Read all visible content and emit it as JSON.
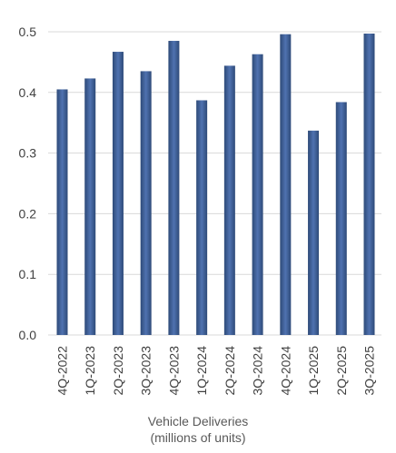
{
  "chart_data": {
    "type": "bar",
    "categories": [
      "4Q-2022",
      "1Q-2023",
      "2Q-2023",
      "3Q-2023",
      "4Q-2023",
      "1Q-2024",
      "2Q-2024",
      "3Q-2024",
      "4Q-2024",
      "1Q-2025",
      "2Q-2025",
      "3Q-2025"
    ],
    "values": [
      0.405,
      0.423,
      0.467,
      0.435,
      0.485,
      0.387,
      0.444,
      0.463,
      0.496,
      0.337,
      0.384,
      0.497
    ],
    "ylim": [
      0,
      0.5
    ],
    "yticks": [
      "0.0",
      "0.1",
      "0.2",
      "0.3",
      "0.4",
      "0.5"
    ],
    "grid": true,
    "xlabel_line1": "Vehicle Deliveries",
    "xlabel_line2": "(millions of units)",
    "colors": {
      "bar_edge": "#2e4a78",
      "bar_center": "#4f72b0",
      "grid": "#d9d9d9",
      "axis_text": "#404040",
      "label_text": "#595959"
    }
  }
}
